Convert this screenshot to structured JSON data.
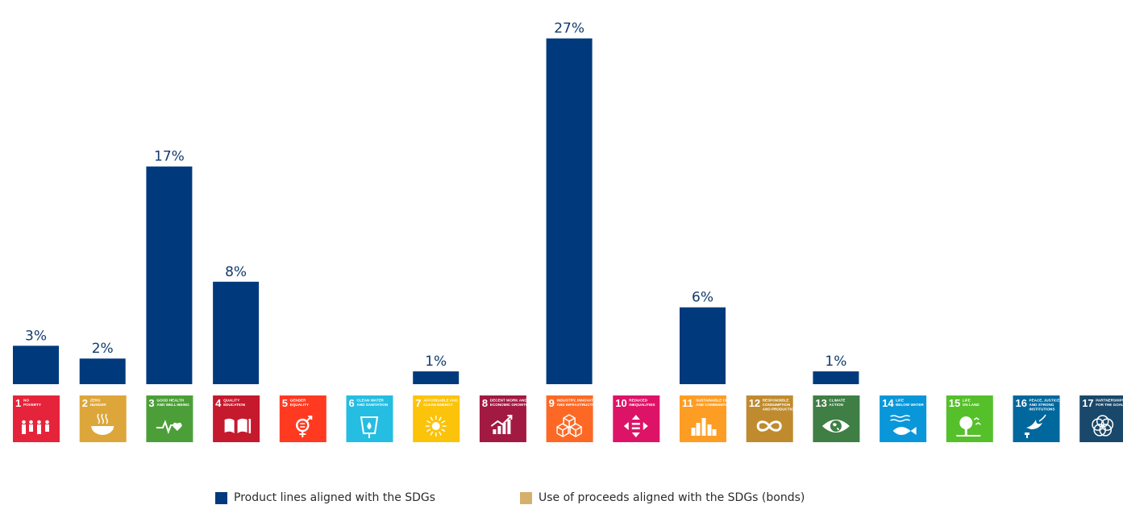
{
  "chart_data": {
    "type": "bar",
    "categories": [
      {
        "num": "1",
        "text": [
          "NO",
          "POVERTY"
        ],
        "color": "#e5243b",
        "icon": "family-icon"
      },
      {
        "num": "2",
        "text": [
          "ZERO",
          "HUNGER"
        ],
        "color": "#dda63a",
        "icon": "bowl-icon"
      },
      {
        "num": "3",
        "text": [
          "GOOD HEALTH",
          "AND WELL-BEING"
        ],
        "color": "#4c9f38",
        "icon": "heartbeat-icon"
      },
      {
        "num": "4",
        "text": [
          "QUALITY",
          "EDUCATION"
        ],
        "color": "#c5192d",
        "icon": "book-icon"
      },
      {
        "num": "5",
        "text": [
          "GENDER",
          "EQUALITY"
        ],
        "color": "#ff3a21",
        "icon": "gender-icon"
      },
      {
        "num": "6",
        "text": [
          "CLEAN WATER",
          "AND SANITATION"
        ],
        "color": "#26bde2",
        "icon": "water-icon"
      },
      {
        "num": "7",
        "text": [
          "AFFORDABLE AND",
          "CLEAN ENERGY"
        ],
        "color": "#fcc30b",
        "icon": "sun-icon"
      },
      {
        "num": "8",
        "text": [
          "DECENT WORK AND",
          "ECONOMIC GROWTH"
        ],
        "color": "#a21942",
        "icon": "growth-chart-icon"
      },
      {
        "num": "9",
        "text": [
          "INDUSTRY, INNOVATION",
          "AND INFRASTRUCTURE"
        ],
        "color": "#fd6925",
        "icon": "cubes-icon"
      },
      {
        "num": "10",
        "text": [
          "REDUCED",
          "INEQUALITIES"
        ],
        "color": "#dd1367",
        "icon": "equals-arrows-icon"
      },
      {
        "num": "11",
        "text": [
          "SUSTAINABLE CITIES",
          "AND COMMUNITIES"
        ],
        "color": "#fd9d24",
        "icon": "city-icon"
      },
      {
        "num": "12",
        "text": [
          "RESPONSIBLE",
          "CONSUMPTION",
          "AND PRODUCTION"
        ],
        "color": "#bf8b2e",
        "icon": "infinity-icon"
      },
      {
        "num": "13",
        "text": [
          "CLIMATE",
          "ACTION"
        ],
        "color": "#3f7e44",
        "icon": "eye-globe-icon"
      },
      {
        "num": "14",
        "text": [
          "LIFE",
          "BELOW WATER"
        ],
        "color": "#0a97d9",
        "icon": "fish-icon"
      },
      {
        "num": "15",
        "text": [
          "LIFE",
          "ON LAND"
        ],
        "color": "#56c02b",
        "icon": "tree-icon"
      },
      {
        "num": "16",
        "text": [
          "PEACE, JUSTICE",
          "AND STRONG",
          "INSTITUTIONS"
        ],
        "color": "#00689d",
        "icon": "dove-icon"
      },
      {
        "num": "17",
        "text": [
          "PARTNERSHIPS",
          "FOR THE GOALS"
        ],
        "color": "#19486a",
        "icon": "rings-icon"
      }
    ],
    "series": [
      {
        "name": "Product lines aligned with the SDGs",
        "color": "#003a7d",
        "values": [
          3,
          2,
          17,
          8,
          0,
          0,
          1,
          0,
          27,
          0,
          6,
          0,
          1,
          0,
          0,
          0,
          0
        ],
        "labels": [
          "3%",
          "2%",
          "17%",
          "8%",
          "",
          "",
          "1%",
          "",
          "27%",
          "",
          "6%",
          "",
          "1%",
          "",
          "",
          "",
          ""
        ]
      },
      {
        "name": "Use of proceeds aligned with the SDGs (bonds)",
        "color": "#d4b06a",
        "values": [
          0,
          0,
          0,
          0,
          0,
          0,
          0,
          0,
          0,
          0,
          0,
          0,
          0,
          0,
          0,
          0,
          0
        ]
      }
    ],
    "ylim": [
      0,
      28.3
    ],
    "grid": false,
    "legend_position": "bottom-center"
  },
  "legend": {
    "items": [
      {
        "label": "Product lines aligned with the SDGs",
        "color": "#003a7d"
      },
      {
        "label": "Use of proceeds aligned with the SDGs (bonds)",
        "color": "#d4b06a"
      }
    ]
  }
}
